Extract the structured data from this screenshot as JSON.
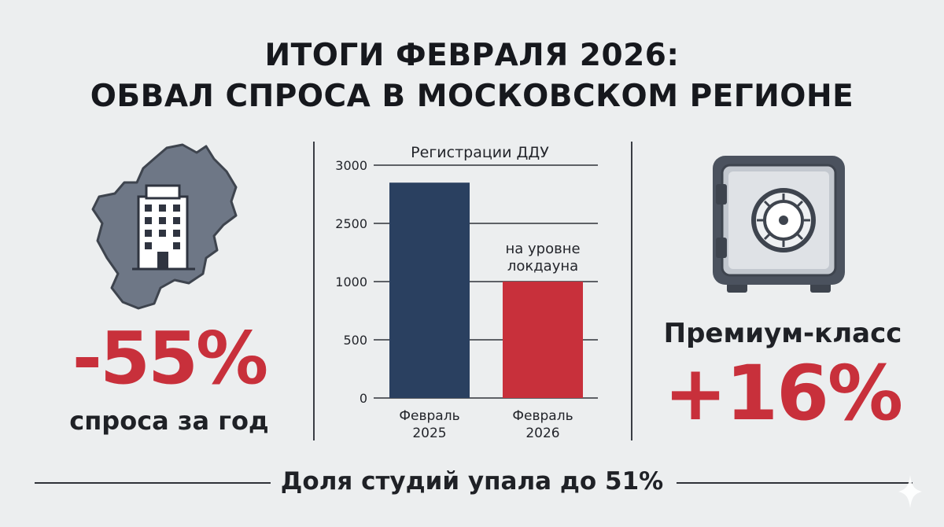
{
  "header": {
    "line1": "ИТОГИ ФЕВРАЛЯ 2026:",
    "line2": "ОБВАЛ СПРОСА В МОСКОВСКОМ РЕГИОНЕ"
  },
  "left_panel": {
    "value": "-55%",
    "caption": "спроса за год",
    "icon": "moscow-region-map-with-building-icon"
  },
  "right_panel": {
    "label": "Премиум-класс",
    "value": "+16%",
    "icon": "safe-icon"
  },
  "footer": {
    "text": "Доля студий упала до 51%"
  },
  "colors": {
    "accent_red": "#c8303b",
    "bar_navy": "#2a4060",
    "map_gray": "#6e7786",
    "background": "#eceeef"
  },
  "chart_data": {
    "type": "bar",
    "title": "Регистрации ДДУ",
    "xlabel": "",
    "ylabel": "",
    "y_ticks": [
      "0",
      "500",
      "1000",
      "2500",
      "3000"
    ],
    "categories": [
      "Февраль 2025",
      "Февраль 2026"
    ],
    "category_lines": [
      [
        "Февраль",
        "2025"
      ],
      [
        "Февраль",
        "2026"
      ]
    ],
    "values": [
      2850,
      1000
    ],
    "bar_colors": [
      "#2a4060",
      "#c8303b"
    ],
    "annotation": {
      "category": "Февраль 2026",
      "lines": [
        "на уровне",
        "локдауна"
      ]
    },
    "grid": false
  }
}
